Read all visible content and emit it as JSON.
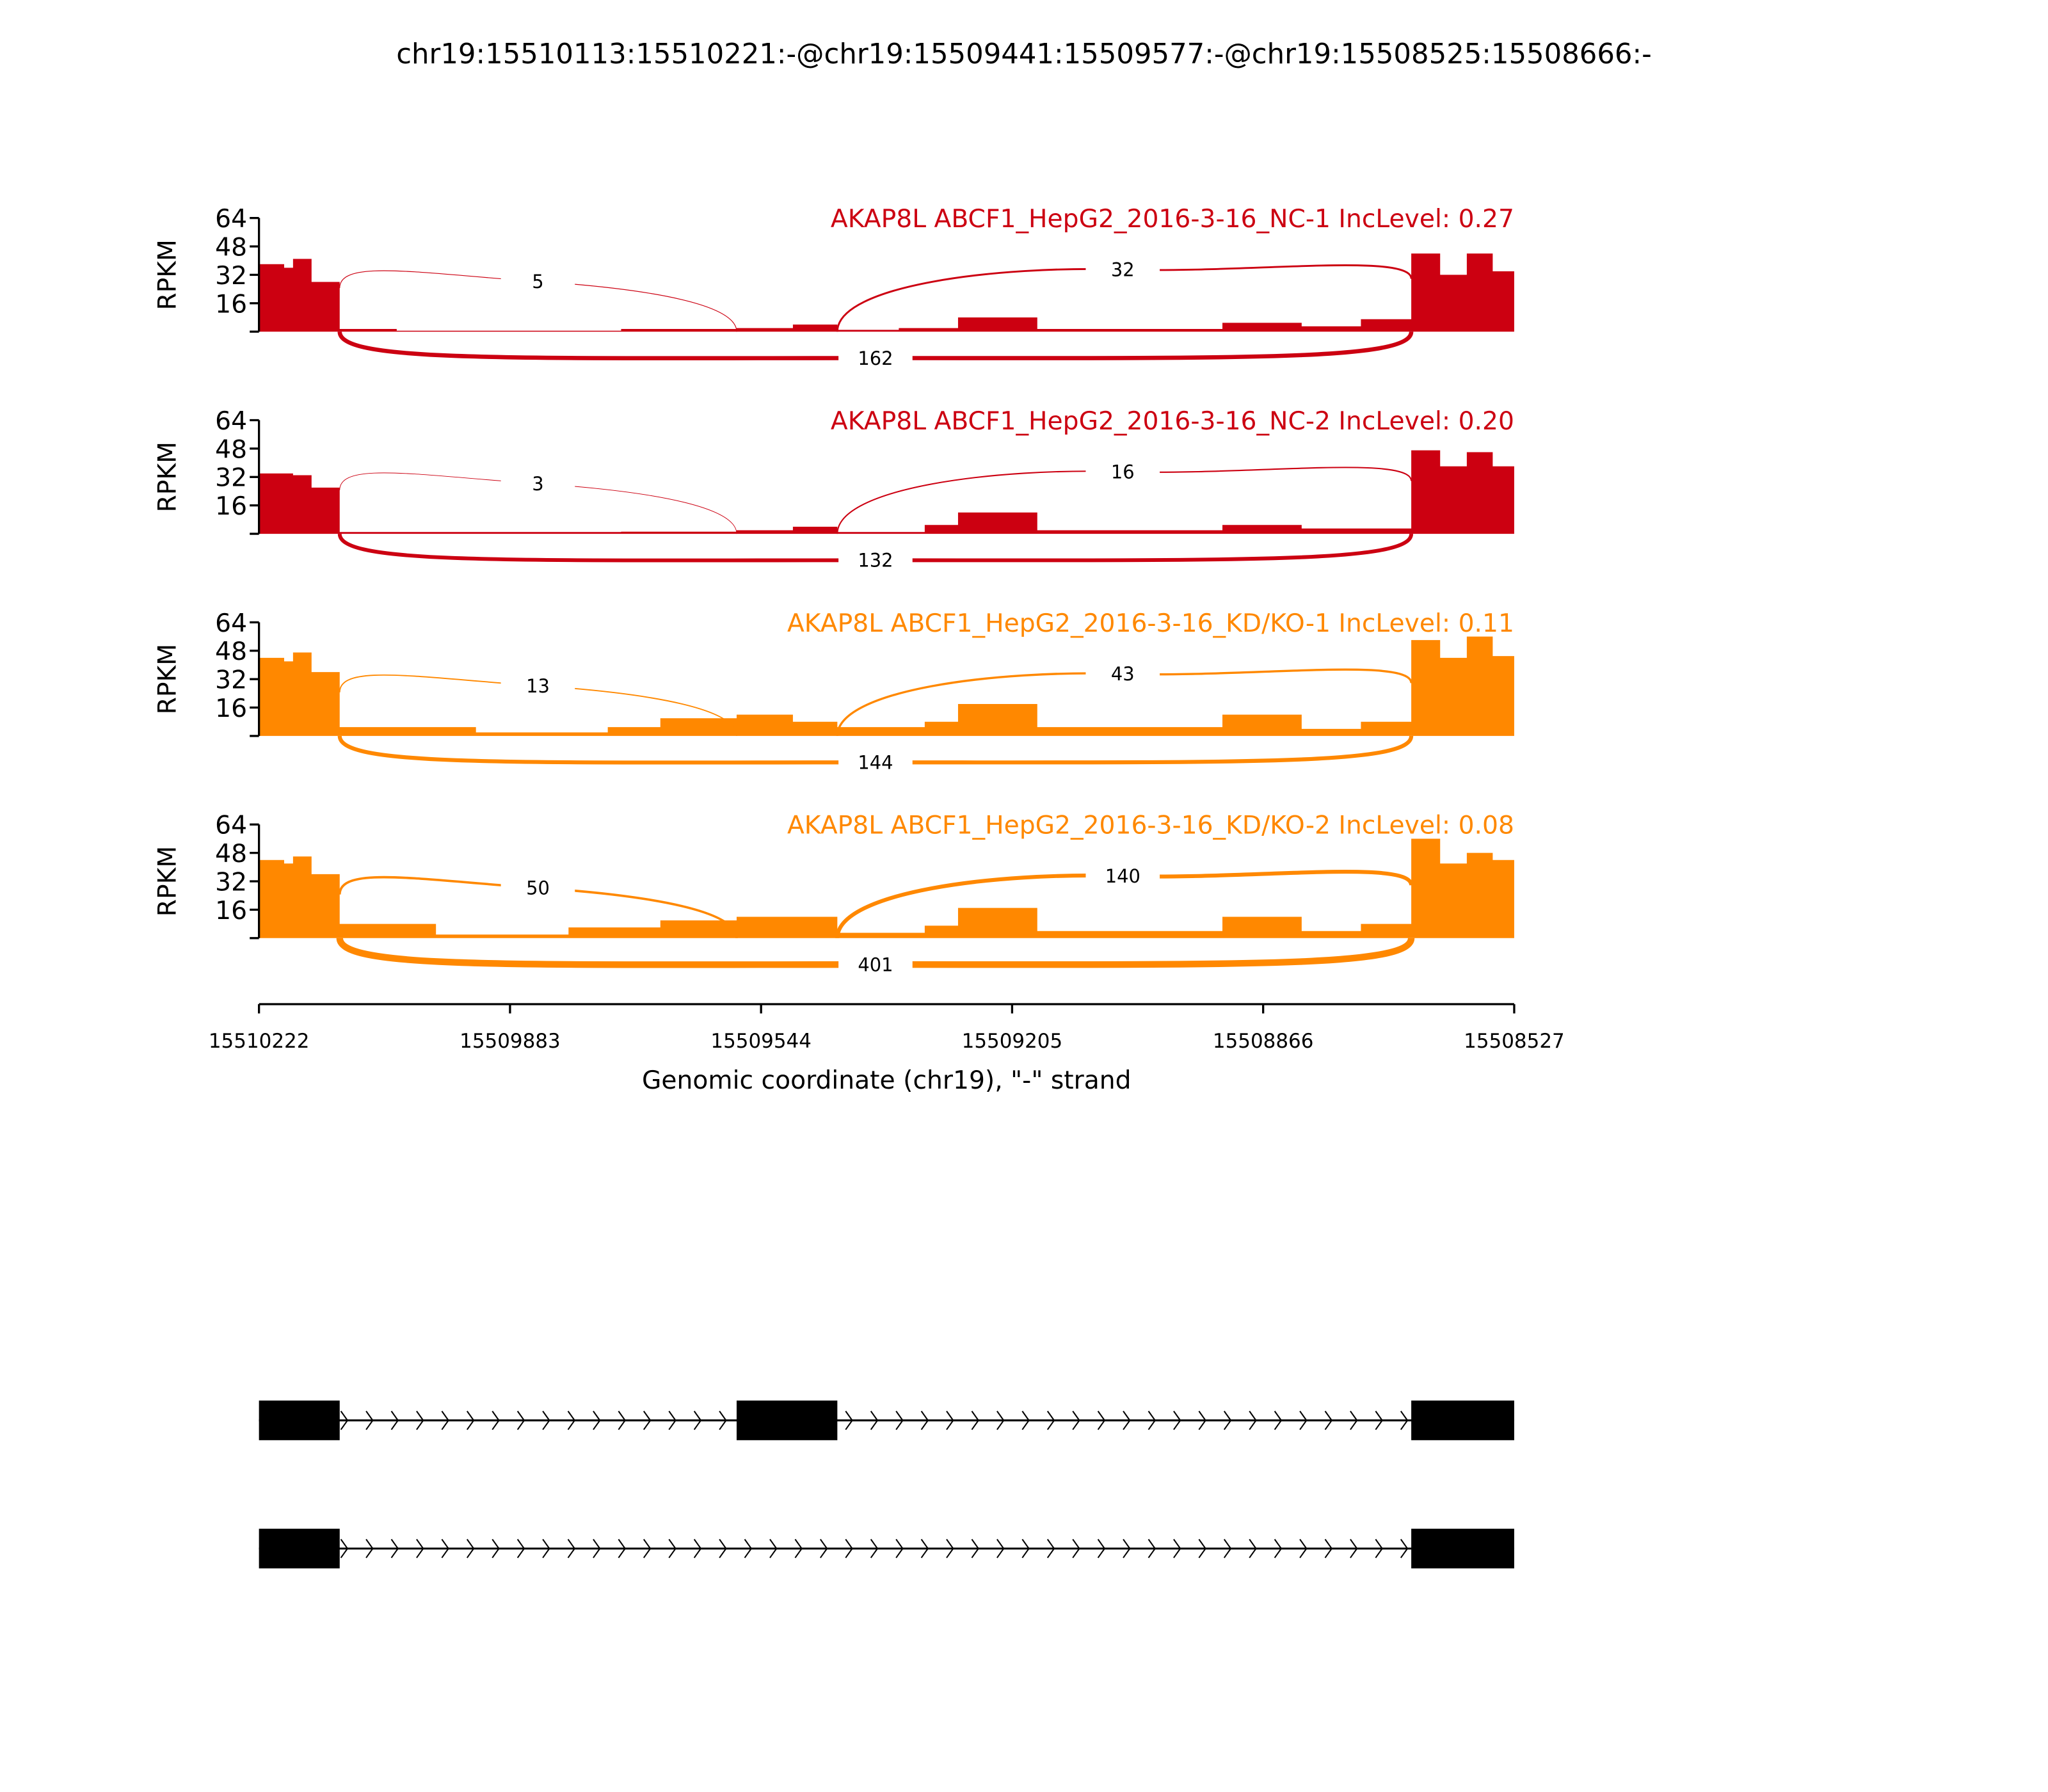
{
  "chart_data": {
    "type": "area",
    "title": "chr19:15510113:15510221:-@chr19:15509441:15509577:-@chr19:15508525:15508666:-",
    "xlabel": "Genomic coordinate (chr19), \"-\" strand",
    "ylabel": "RPKM",
    "xlim": [
      15510222,
      15508527
    ],
    "ylim": [
      0,
      64
    ],
    "x_ticks": [
      "15510222",
      "15509883",
      "15509544",
      "15509205",
      "15508866",
      "15508527"
    ],
    "y_ticks": [
      "64",
      "48",
      "32",
      "16"
    ],
    "exons": [
      [
        15510222,
        15510113
      ],
      [
        15509577,
        15509441
      ],
      [
        15508666,
        15508527
      ]
    ],
    "samples": [
      {
        "label": "AKAP8L ABCF1_HepG2_2016-3-16_NC-1 IncLevel: 0.27",
        "color": "#CC0011",
        "coverage": [
          [
            15510222,
            15510188,
            38
          ],
          [
            15510188,
            15510176,
            36
          ],
          [
            15510176,
            15510151,
            41
          ],
          [
            15510151,
            15510113,
            28
          ],
          [
            15510113,
            15510036,
            1.5
          ],
          [
            15510036,
            15509733,
            0.5
          ],
          [
            15509733,
            15509577,
            1.5
          ],
          [
            15509577,
            15509501,
            2
          ],
          [
            15509501,
            15509441,
            4
          ],
          [
            15509441,
            15509358,
            1
          ],
          [
            15509358,
            15509278,
            2
          ],
          [
            15509278,
            15509171,
            8
          ],
          [
            15509171,
            15508921,
            1.5
          ],
          [
            15508921,
            15508814,
            5
          ],
          [
            15508814,
            15508734,
            3
          ],
          [
            15508734,
            15508666,
            7
          ],
          [
            15508666,
            15508627,
            44
          ],
          [
            15508627,
            15508591,
            32
          ],
          [
            15508591,
            15508556,
            44
          ],
          [
            15508556,
            15508527,
            34
          ]
        ],
        "junctions": [
          {
            "from": 15510113,
            "to": 15509577,
            "count": "5",
            "side": "above"
          },
          {
            "from": 15509441,
            "to": 15508666,
            "count": "32",
            "side": "above"
          },
          {
            "from": 15510113,
            "to": 15508666,
            "count": "162",
            "side": "below"
          }
        ]
      },
      {
        "label": "AKAP8L ABCF1_HepG2_2016-3-16_NC-2 IncLevel: 0.20",
        "color": "#CC0011",
        "coverage": [
          [
            15510222,
            15510176,
            34
          ],
          [
            15510176,
            15510151,
            33
          ],
          [
            15510151,
            15510113,
            26
          ],
          [
            15510113,
            15509733,
            1
          ],
          [
            15509733,
            15509577,
            1.2
          ],
          [
            15509577,
            15509501,
            2
          ],
          [
            15509501,
            15509441,
            4
          ],
          [
            15509441,
            15509323,
            1
          ],
          [
            15509323,
            15509278,
            5
          ],
          [
            15509278,
            15509171,
            12
          ],
          [
            15509171,
            15508921,
            2
          ],
          [
            15508921,
            15508814,
            5
          ],
          [
            15508814,
            15508666,
            3
          ],
          [
            15508666,
            15508627,
            47
          ],
          [
            15508627,
            15508591,
            38
          ],
          [
            15508591,
            15508556,
            46
          ],
          [
            15508556,
            15508527,
            38
          ]
        ],
        "junctions": [
          {
            "from": 15510113,
            "to": 15509577,
            "count": "3",
            "side": "above"
          },
          {
            "from": 15509441,
            "to": 15508666,
            "count": "16",
            "side": "above"
          },
          {
            "from": 15510113,
            "to": 15508666,
            "count": "132",
            "side": "below"
          }
        ]
      },
      {
        "label": "AKAP8L ABCF1_HepG2_2016-3-16_KD/KO-1 IncLevel: 0.11",
        "color": "#FF8800",
        "coverage": [
          [
            15510222,
            15510188,
            44
          ],
          [
            15510188,
            15510176,
            42
          ],
          [
            15510176,
            15510151,
            47
          ],
          [
            15510151,
            15510113,
            36
          ],
          [
            15510113,
            15509929,
            5
          ],
          [
            15509929,
            15509751,
            2
          ],
          [
            15509751,
            15509680,
            5
          ],
          [
            15509680,
            15509577,
            10
          ],
          [
            15509577,
            15509501,
            12
          ],
          [
            15509501,
            15509441,
            8
          ],
          [
            15509441,
            15509323,
            5
          ],
          [
            15509323,
            15509278,
            8
          ],
          [
            15509278,
            15509171,
            18
          ],
          [
            15509171,
            15508921,
            5
          ],
          [
            15508921,
            15508814,
            12
          ],
          [
            15508814,
            15508734,
            4
          ],
          [
            15508734,
            15508666,
            8
          ],
          [
            15508666,
            15508627,
            54
          ],
          [
            15508627,
            15508591,
            44
          ],
          [
            15508591,
            15508556,
            56
          ],
          [
            15508556,
            15508527,
            45
          ]
        ],
        "junctions": [
          {
            "from": 15510113,
            "to": 15509577,
            "count": "13",
            "side": "above"
          },
          {
            "from": 15509441,
            "to": 15508666,
            "count": "43",
            "side": "above"
          },
          {
            "from": 15510113,
            "to": 15508666,
            "count": "144",
            "side": "below"
          }
        ]
      },
      {
        "label": "AKAP8L ABCF1_HepG2_2016-3-16_KD/KO-2 IncLevel: 0.08",
        "color": "#FF8800",
        "coverage": [
          [
            15510222,
            15510188,
            44
          ],
          [
            15510188,
            15510176,
            42
          ],
          [
            15510176,
            15510151,
            46
          ],
          [
            15510151,
            15510113,
            36
          ],
          [
            15510113,
            15509983,
            8
          ],
          [
            15509983,
            15509804,
            2
          ],
          [
            15509804,
            15509680,
            6
          ],
          [
            15509680,
            15509577,
            10
          ],
          [
            15509577,
            15509441,
            12
          ],
          [
            15509441,
            15509323,
            3
          ],
          [
            15509323,
            15509278,
            7
          ],
          [
            15509278,
            15509171,
            17
          ],
          [
            15509171,
            15508921,
            4
          ],
          [
            15508921,
            15508814,
            12
          ],
          [
            15508814,
            15508734,
            4
          ],
          [
            15508734,
            15508666,
            8
          ],
          [
            15508666,
            15508627,
            56
          ],
          [
            15508627,
            15508591,
            42
          ],
          [
            15508591,
            15508556,
            48
          ],
          [
            15508556,
            15508527,
            44
          ]
        ],
        "junctions": [
          {
            "from": 15510113,
            "to": 15509577,
            "count": "50",
            "side": "above"
          },
          {
            "from": 15509441,
            "to": 15508666,
            "count": "140",
            "side": "above"
          },
          {
            "from": 15510113,
            "to": 15508666,
            "count": "401",
            "side": "below"
          }
        ]
      }
    ],
    "isoforms": [
      {
        "exons": [
          [
            15510222,
            15510113
          ],
          [
            15509577,
            15509441
          ],
          [
            15508666,
            15508527
          ]
        ]
      },
      {
        "exons": [
          [
            15510222,
            15510113
          ],
          [
            15508666,
            15508527
          ]
        ]
      }
    ]
  }
}
